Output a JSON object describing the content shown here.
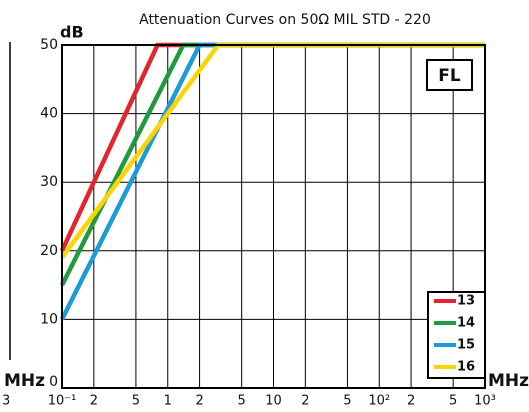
{
  "chart_data": {
    "type": "line",
    "title": "Attenuation Curves on 50Ω  MIL STD - 220",
    "y_label": "dB",
    "x_label": "MHz",
    "badge": "FL",
    "left_fragment": {
      "x_label": "MHz",
      "tick": "3"
    },
    "xscale": "log",
    "xlim": [
      0.1,
      1000
    ],
    "ylim": [
      0,
      50
    ],
    "xticks": [
      {
        "value": 0.1,
        "label": "10⁻¹"
      },
      {
        "value": 0.2,
        "label": "2"
      },
      {
        "value": 0.5,
        "label": "5"
      },
      1,
      2,
      5,
      10,
      {
        "value": 20,
        "label": "2"
      },
      {
        "value": 50,
        "label": "5"
      },
      {
        "value": 100,
        "label": "10²"
      },
      {
        "value": 200,
        "label": "2"
      },
      {
        "value": 500,
        "label": "5"
      },
      {
        "value": 1000,
        "label": "10³"
      }
    ],
    "yticks": [
      0,
      10,
      20,
      30,
      40,
      50
    ],
    "grid": true,
    "legend": "lower right",
    "series": [
      {
        "name": "13",
        "color": "#e3262b",
        "x": [
          0.1,
          0.8,
          1000
        ],
        "values": [
          20,
          50,
          50
        ]
      },
      {
        "name": "14",
        "color": "#1f9a3c",
        "x": [
          0.1,
          1.4,
          1000
        ],
        "values": [
          15,
          50,
          50
        ]
      },
      {
        "name": "15",
        "color": "#1d9ad9",
        "x": [
          0.1,
          2.0,
          1000
        ],
        "values": [
          10,
          50,
          50
        ]
      },
      {
        "name": "16",
        "color": "#fcd400",
        "x": [
          0.1,
          3.0,
          1000
        ],
        "values": [
          19,
          50,
          50
        ]
      }
    ]
  }
}
